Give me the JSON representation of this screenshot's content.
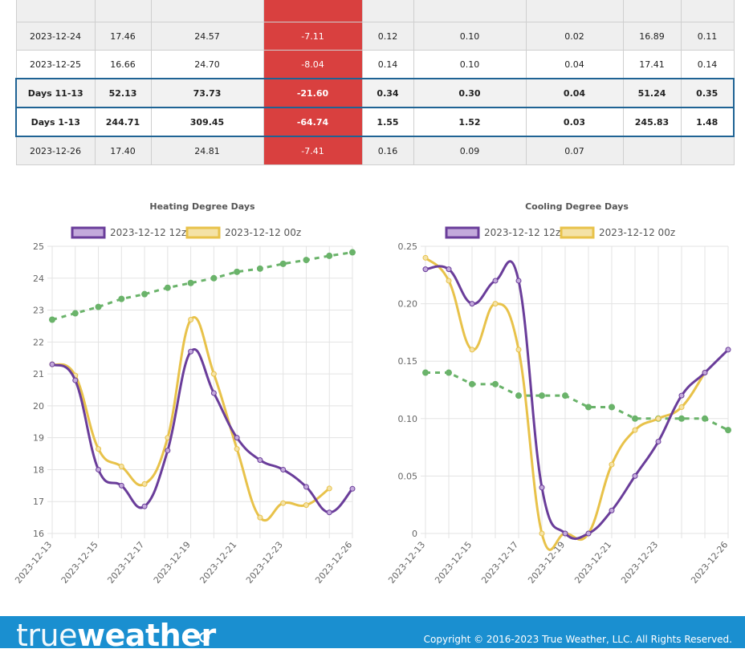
{
  "table": {
    "rows": [
      {
        "style": "alt",
        "cells": [
          "",
          "",
          "",
          "",
          "",
          "",
          "",
          "",
          ""
        ]
      },
      {
        "style": "alt",
        "cells": [
          "2023-12-24",
          "17.46",
          "24.57",
          "-7.11",
          "0.12",
          "0.10",
          "0.02",
          "16.89",
          "0.11"
        ]
      },
      {
        "style": "plain",
        "cells": [
          "2023-12-25",
          "16.66",
          "24.70",
          "-8.04",
          "0.14",
          "0.10",
          "0.04",
          "17.41",
          "0.14"
        ]
      },
      {
        "style": "summary first",
        "cells": [
          "Days 11-13",
          "52.13",
          "73.73",
          "-21.60",
          "0.34",
          "0.30",
          "0.04",
          "51.24",
          "0.35"
        ]
      },
      {
        "style": "summary",
        "cells": [
          "Days 1-13",
          "244.71",
          "309.45",
          "-64.74",
          "1.55",
          "1.52",
          "0.03",
          "245.83",
          "1.48"
        ]
      },
      {
        "style": "alt",
        "cells": [
          "2023-12-26",
          "17.40",
          "24.81",
          "-7.41",
          "0.16",
          "0.09",
          "0.07",
          "",
          ""
        ]
      }
    ]
  },
  "colors": {
    "series_12z": "#6a3d9a",
    "series_12z_fill": "#c3a9db",
    "series_00z": "#e8c24a",
    "series_00z_fill": "#f4e2a6",
    "normal": "#6ab36a",
    "negative_cell": "#d9403f",
    "footer": "#1a8fd0"
  },
  "chart_data": [
    {
      "type": "line",
      "title": "Heating Degree Days",
      "x": [
        "2023-12-13",
        "2023-12-14",
        "2023-12-15",
        "2023-12-16",
        "2023-12-17",
        "2023-12-18",
        "2023-12-19",
        "2023-12-20",
        "2023-12-21",
        "2023-12-22",
        "2023-12-23",
        "2023-12-24",
        "2023-12-25",
        "2023-12-26"
      ],
      "x_tick_labels": [
        "2023-12-13",
        "2023-12-15",
        "2023-12-17",
        "2023-12-19",
        "2023-12-21",
        "2023-12-23",
        "2023-12-26"
      ],
      "ylim": [
        16,
        25
      ],
      "y_ticks": [
        "16",
        "17",
        "18",
        "19",
        "20",
        "21",
        "22",
        "23",
        "24",
        "25"
      ],
      "legend_position": "top",
      "grid": true,
      "series": [
        {
          "name": "2023-12-12 12z",
          "color": "#6a3d9a",
          "values": [
            21.3,
            20.8,
            18.0,
            17.5,
            16.85,
            18.6,
            21.7,
            20.4,
            19.0,
            18.3,
            18.0,
            17.46,
            16.66,
            17.4
          ]
        },
        {
          "name": "2023-12-12 00z",
          "color": "#e8c24a",
          "values": [
            21.3,
            20.95,
            18.65,
            18.1,
            17.55,
            19.0,
            22.7,
            21.0,
            18.65,
            16.5,
            16.95,
            16.89,
            17.41,
            null
          ]
        },
        {
          "name": "",
          "color": "#6ab36a",
          "dashed": true,
          "values": [
            22.7,
            22.9,
            23.1,
            23.35,
            23.5,
            23.7,
            23.85,
            24.0,
            24.2,
            24.3,
            24.45,
            24.57,
            24.7,
            24.81
          ]
        }
      ]
    },
    {
      "type": "line",
      "title": "Cooling Degree Days",
      "x": [
        "2023-12-13",
        "2023-12-14",
        "2023-12-15",
        "2023-12-16",
        "2023-12-17",
        "2023-12-18",
        "2023-12-19",
        "2023-12-20",
        "2023-12-21",
        "2023-12-22",
        "2023-12-23",
        "2023-12-24",
        "2023-12-25",
        "2023-12-26"
      ],
      "x_tick_labels": [
        "2023-12-13",
        "2023-12-15",
        "2023-12-17",
        "2023-12-19",
        "2023-12-21",
        "2023-12-23",
        "2023-12-26"
      ],
      "ylim": [
        0,
        0.25
      ],
      "y_ticks": [
        "0",
        "0.05",
        "0.10",
        "0.15",
        "0.20",
        "0.25"
      ],
      "legend_position": "top",
      "grid": true,
      "series": [
        {
          "name": "2023-12-12 12z",
          "color": "#6a3d9a",
          "values": [
            0.23,
            0.23,
            0.2,
            0.22,
            0.22,
            0.04,
            0.0,
            0.0,
            0.02,
            0.05,
            0.08,
            0.12,
            0.14,
            0.16
          ]
        },
        {
          "name": "2023-12-12 00z",
          "color": "#e8c24a",
          "values": [
            0.24,
            0.22,
            0.16,
            0.2,
            0.16,
            0.0,
            0.0,
            0.0,
            0.06,
            0.09,
            0.1,
            0.11,
            0.14,
            null
          ]
        },
        {
          "name": "",
          "color": "#6ab36a",
          "dashed": true,
          "values": [
            0.14,
            0.14,
            0.13,
            0.13,
            0.12,
            0.12,
            0.12,
            0.11,
            0.11,
            0.1,
            0.1,
            0.1,
            0.1,
            0.09
          ]
        }
      ]
    }
  ],
  "footer": {
    "logo_thin": "true",
    "logo_bold": "weather",
    "copyright": "Copyright © 2016-2023 True Weather, LLC. All Rights Reserved."
  }
}
